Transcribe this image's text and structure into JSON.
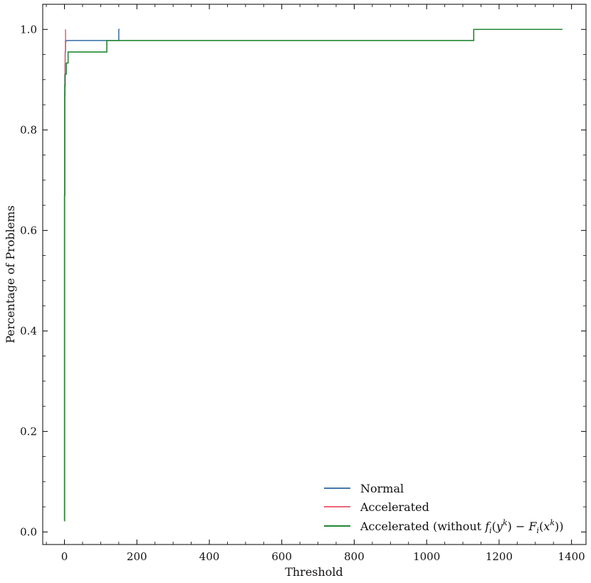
{
  "chart_data": {
    "type": "line",
    "title": "",
    "xlabel": "Threshold",
    "ylabel": "Percentage of Problems",
    "xlim": [
      -60,
      1440
    ],
    "ylim": [
      -0.025,
      1.05
    ],
    "xticks": [
      0,
      200,
      400,
      600,
      800,
      1000,
      1200,
      1400
    ],
    "yticks": [
      0.0,
      0.2,
      0.4,
      0.6,
      0.8,
      1.0
    ],
    "xtick_labels": [
      "0",
      "200",
      "400",
      "600",
      "800",
      "1000",
      "1200",
      "1400"
    ],
    "ytick_labels": [
      "0.0",
      "0.2",
      "0.4",
      "0.6",
      "0.8",
      "1.0"
    ],
    "grid": false,
    "legend_position": "bottom-right",
    "series": [
      {
        "name": "Normal",
        "color": "#4477AA",
        "x": [
          0,
          0.3,
          0.6,
          1,
          1.5,
          2,
          3,
          4,
          150,
          150,
          152
        ],
        "y": [
          0.022,
          0.67,
          0.87,
          0.91,
          0.93,
          0.955,
          0.975,
          0.978,
          0.978,
          1.0,
          1.0
        ]
      },
      {
        "name": "Accelerated",
        "color": "#EE6677",
        "x": [
          0,
          0.5,
          1,
          1.5,
          2,
          2.5,
          3
        ],
        "y": [
          0.022,
          0.67,
          0.87,
          0.91,
          0.95,
          0.978,
          1.0
        ]
      },
      {
        "name": "Accelerated (without f_i(y^k) − F_i(x^k))",
        "color": "#228833",
        "x": [
          0,
          0.3,
          0.6,
          1,
          2,
          5,
          10,
          20,
          117,
          117,
          1130,
          1130,
          1375
        ],
        "y": [
          0.022,
          0.67,
          0.87,
          0.889,
          0.911,
          0.933,
          0.955,
          0.955,
          0.955,
          0.978,
          0.978,
          1.0,
          1.0
        ]
      }
    ]
  },
  "legend": {
    "entries": [
      {
        "label": "Normal"
      },
      {
        "label": "Accelerated"
      },
      {
        "label_prefix": "Accelerated (without ",
        "math": "f",
        "sub1": "i",
        "paren1": "(",
        "var1": "y",
        "sup1": "k",
        "mid": ") − ",
        "math2": "F",
        "sub2": "i",
        "paren2": "(",
        "var2": "x",
        "sup2": "k",
        "label_suffix": "))"
      }
    ]
  }
}
